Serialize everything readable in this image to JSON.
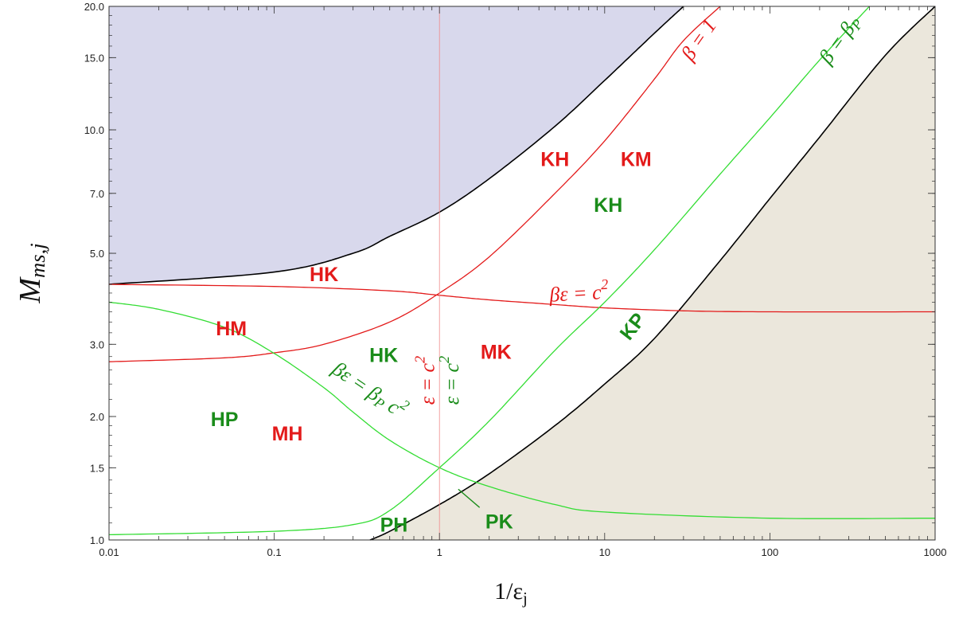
{
  "chart_data": {
    "type": "line",
    "title": "",
    "xlabel": "1/ε_j",
    "ylabel": "M_ms,j",
    "xscale": "log",
    "yscale": "log",
    "xlim": [
      0.01,
      1000
    ],
    "ylim": [
      1.0,
      20.0
    ],
    "x_tick_labels": [
      "0.01",
      "0.1",
      "1",
      "10",
      "100",
      "1000"
    ],
    "y_tick_labels": [
      "1.0",
      "1.5",
      "2.0",
      "3.0",
      "5.0",
      "7.0",
      "10.0",
      "15.0",
      "20.0"
    ],
    "colors": {
      "red": "#e31a1a",
      "green": "#1a8c1a",
      "bright_green": "#33dd33",
      "black": "#000000",
      "upper_fill": "#d8d8ec",
      "lower_fill": "#ebe7dc"
    },
    "series": [
      {
        "color": "black",
        "x": [
          0.01,
          0.1,
          0.3,
          0.5,
          1,
          2,
          5,
          10,
          20,
          30
        ],
        "y": [
          4.2,
          4.5,
          5.0,
          5.5,
          6.3,
          7.6,
          10.2,
          13.2,
          17.2,
          20.0
        ]
      },
      {
        "color": "black",
        "x": [
          0.38,
          0.5,
          1,
          2,
          5,
          10,
          20,
          50,
          100,
          200,
          500,
          1000
        ],
        "y": [
          1.0,
          1.05,
          1.22,
          1.45,
          1.9,
          2.4,
          3.1,
          4.8,
          6.8,
          9.6,
          15.2,
          20.0
        ]
      },
      {
        "name": "β = 1",
        "color": "red",
        "x": [
          0.01,
          0.05,
          0.1,
          0.2,
          0.5,
          1,
          2,
          5,
          10,
          20,
          30,
          50
        ],
        "y": [
          2.72,
          2.78,
          2.86,
          3.0,
          3.4,
          4.0,
          4.9,
          7.0,
          9.4,
          13.3,
          16.5,
          20.0
        ]
      },
      {
        "name": "βε = c²",
        "color": "red",
        "x": [
          0.01,
          0.1,
          0.5,
          1,
          2,
          5,
          10,
          30,
          100,
          1000
        ],
        "y": [
          4.2,
          4.15,
          4.05,
          3.95,
          3.85,
          3.75,
          3.68,
          3.62,
          3.6,
          3.6
        ]
      },
      {
        "name": "β = β_P",
        "color": "bright_green",
        "x": [
          0.01,
          0.1,
          0.3,
          0.5,
          1,
          2,
          5,
          10,
          20,
          50,
          100,
          200,
          400
        ],
        "y": [
          1.03,
          1.05,
          1.09,
          1.18,
          1.5,
          1.95,
          2.9,
          3.8,
          5.1,
          7.8,
          10.7,
          14.8,
          20.0
        ]
      },
      {
        "name": "βε = β_P c²",
        "color": "bright_green",
        "x": [
          0.01,
          0.02,
          0.05,
          0.1,
          0.2,
          0.3,
          0.5,
          1,
          2,
          5,
          10,
          100,
          1000
        ],
        "y": [
          3.8,
          3.65,
          3.3,
          2.85,
          2.35,
          2.05,
          1.75,
          1.5,
          1.35,
          1.22,
          1.17,
          1.13,
          1.13
        ]
      },
      {
        "name": "ε = c²",
        "color": "red",
        "x": [
          1,
          1
        ],
        "y": [
          1.0,
          20.0
        ]
      }
    ],
    "annotations": [
      {
        "text": "HK",
        "color": "red",
        "x": 0.2,
        "y": 4.4
      },
      {
        "text": "KH",
        "color": "red",
        "x": 5.0,
        "y": 8.4
      },
      {
        "text": "KM",
        "color": "red",
        "x": 15.5,
        "y": 8.4
      },
      {
        "text": "KH",
        "color": "green",
        "x": 10.5,
        "y": 6.5
      },
      {
        "text": "HM",
        "color": "red",
        "x": 0.055,
        "y": 3.25
      },
      {
        "text": "HK",
        "color": "green",
        "x": 0.46,
        "y": 2.8
      },
      {
        "text": "MK",
        "color": "red",
        "x": 2.2,
        "y": 2.85
      },
      {
        "text": "HP",
        "color": "green",
        "x": 0.05,
        "y": 1.95
      },
      {
        "text": "MH",
        "color": "red",
        "x": 0.12,
        "y": 1.8
      },
      {
        "text": "PH",
        "color": "green",
        "x": 0.53,
        "y": 1.08
      },
      {
        "text": "PK",
        "color": "green",
        "x": 2.3,
        "y": 1.1
      },
      {
        "text": "KP",
        "color": "green",
        "x": 15,
        "y": 3.3
      },
      {
        "text": "ε = c²",
        "color": "red",
        "x": 0.87,
        "y": 2.45
      },
      {
        "text": "ε = c²",
        "color": "green",
        "x": 1.22,
        "y": 2.45
      },
      {
        "text": "β = 1",
        "color": "red",
        "x": 38,
        "y": 16.5
      },
      {
        "text": "βε = c²",
        "color": "red",
        "x": 7.0,
        "y": 3.95
      },
      {
        "text": "β = β_P",
        "color": "green",
        "x": 270,
        "y": 16.5
      },
      {
        "text": "βε = β_P c²",
        "color": "green",
        "x": 0.37,
        "y": 2.3
      }
    ]
  }
}
